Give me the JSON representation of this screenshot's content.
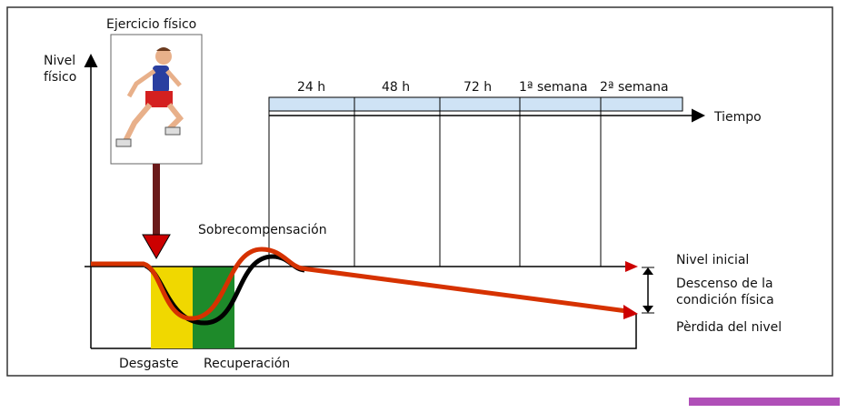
{
  "exercise_label": "Ejercicio físico",
  "y_axis_label": "Nivel físico",
  "time_axis": {
    "labels": [
      "24 h",
      "48 h",
      "72 h",
      "1ª semana",
      "2ª semana"
    ],
    "title": "Tiempo"
  },
  "annotations": {
    "supercompensation": "Sobrecompensación",
    "wear": "Desgaste",
    "recovery": "Recuperación",
    "initial_level": "Nivel inicial",
    "decline": "Descenso de la condición física",
    "level_loss": "Pèrdida del nivel"
  }
}
